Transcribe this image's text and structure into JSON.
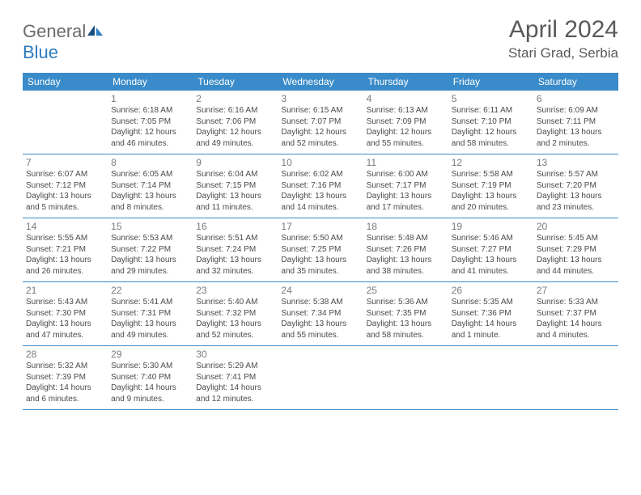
{
  "brand": {
    "part1": "General",
    "part2": "Blue"
  },
  "title": "April 2024",
  "location": "Stari Grad, Serbia",
  "colors": {
    "header_bg": "#3a8bc9",
    "header_text": "#ffffff",
    "logo_gray": "#6b6b6b",
    "logo_blue": "#2d7cc0",
    "text": "#4a4a4a",
    "daynum": "#7a7a7a",
    "rule": "#3a8bc9"
  },
  "day_headers": [
    "Sunday",
    "Monday",
    "Tuesday",
    "Wednesday",
    "Thursday",
    "Friday",
    "Saturday"
  ],
  "weeks": [
    [
      {
        "n": "",
        "lines": []
      },
      {
        "n": "1",
        "lines": [
          "Sunrise: 6:18 AM",
          "Sunset: 7:05 PM",
          "Daylight: 12 hours",
          "and 46 minutes."
        ]
      },
      {
        "n": "2",
        "lines": [
          "Sunrise: 6:16 AM",
          "Sunset: 7:06 PM",
          "Daylight: 12 hours",
          "and 49 minutes."
        ]
      },
      {
        "n": "3",
        "lines": [
          "Sunrise: 6:15 AM",
          "Sunset: 7:07 PM",
          "Daylight: 12 hours",
          "and 52 minutes."
        ]
      },
      {
        "n": "4",
        "lines": [
          "Sunrise: 6:13 AM",
          "Sunset: 7:09 PM",
          "Daylight: 12 hours",
          "and 55 minutes."
        ]
      },
      {
        "n": "5",
        "lines": [
          "Sunrise: 6:11 AM",
          "Sunset: 7:10 PM",
          "Daylight: 12 hours",
          "and 58 minutes."
        ]
      },
      {
        "n": "6",
        "lines": [
          "Sunrise: 6:09 AM",
          "Sunset: 7:11 PM",
          "Daylight: 13 hours",
          "and 2 minutes."
        ]
      }
    ],
    [
      {
        "n": "7",
        "lines": [
          "Sunrise: 6:07 AM",
          "Sunset: 7:12 PM",
          "Daylight: 13 hours",
          "and 5 minutes."
        ]
      },
      {
        "n": "8",
        "lines": [
          "Sunrise: 6:05 AM",
          "Sunset: 7:14 PM",
          "Daylight: 13 hours",
          "and 8 minutes."
        ]
      },
      {
        "n": "9",
        "lines": [
          "Sunrise: 6:04 AM",
          "Sunset: 7:15 PM",
          "Daylight: 13 hours",
          "and 11 minutes."
        ]
      },
      {
        "n": "10",
        "lines": [
          "Sunrise: 6:02 AM",
          "Sunset: 7:16 PM",
          "Daylight: 13 hours",
          "and 14 minutes."
        ]
      },
      {
        "n": "11",
        "lines": [
          "Sunrise: 6:00 AM",
          "Sunset: 7:17 PM",
          "Daylight: 13 hours",
          "and 17 minutes."
        ]
      },
      {
        "n": "12",
        "lines": [
          "Sunrise: 5:58 AM",
          "Sunset: 7:19 PM",
          "Daylight: 13 hours",
          "and 20 minutes."
        ]
      },
      {
        "n": "13",
        "lines": [
          "Sunrise: 5:57 AM",
          "Sunset: 7:20 PM",
          "Daylight: 13 hours",
          "and 23 minutes."
        ]
      }
    ],
    [
      {
        "n": "14",
        "lines": [
          "Sunrise: 5:55 AM",
          "Sunset: 7:21 PM",
          "Daylight: 13 hours",
          "and 26 minutes."
        ]
      },
      {
        "n": "15",
        "lines": [
          "Sunrise: 5:53 AM",
          "Sunset: 7:22 PM",
          "Daylight: 13 hours",
          "and 29 minutes."
        ]
      },
      {
        "n": "16",
        "lines": [
          "Sunrise: 5:51 AM",
          "Sunset: 7:24 PM",
          "Daylight: 13 hours",
          "and 32 minutes."
        ]
      },
      {
        "n": "17",
        "lines": [
          "Sunrise: 5:50 AM",
          "Sunset: 7:25 PM",
          "Daylight: 13 hours",
          "and 35 minutes."
        ]
      },
      {
        "n": "18",
        "lines": [
          "Sunrise: 5:48 AM",
          "Sunset: 7:26 PM",
          "Daylight: 13 hours",
          "and 38 minutes."
        ]
      },
      {
        "n": "19",
        "lines": [
          "Sunrise: 5:46 AM",
          "Sunset: 7:27 PM",
          "Daylight: 13 hours",
          "and 41 minutes."
        ]
      },
      {
        "n": "20",
        "lines": [
          "Sunrise: 5:45 AM",
          "Sunset: 7:29 PM",
          "Daylight: 13 hours",
          "and 44 minutes."
        ]
      }
    ],
    [
      {
        "n": "21",
        "lines": [
          "Sunrise: 5:43 AM",
          "Sunset: 7:30 PM",
          "Daylight: 13 hours",
          "and 47 minutes."
        ]
      },
      {
        "n": "22",
        "lines": [
          "Sunrise: 5:41 AM",
          "Sunset: 7:31 PM",
          "Daylight: 13 hours",
          "and 49 minutes."
        ]
      },
      {
        "n": "23",
        "lines": [
          "Sunrise: 5:40 AM",
          "Sunset: 7:32 PM",
          "Daylight: 13 hours",
          "and 52 minutes."
        ]
      },
      {
        "n": "24",
        "lines": [
          "Sunrise: 5:38 AM",
          "Sunset: 7:34 PM",
          "Daylight: 13 hours",
          "and 55 minutes."
        ]
      },
      {
        "n": "25",
        "lines": [
          "Sunrise: 5:36 AM",
          "Sunset: 7:35 PM",
          "Daylight: 13 hours",
          "and 58 minutes."
        ]
      },
      {
        "n": "26",
        "lines": [
          "Sunrise: 5:35 AM",
          "Sunset: 7:36 PM",
          "Daylight: 14 hours",
          "and 1 minute."
        ]
      },
      {
        "n": "27",
        "lines": [
          "Sunrise: 5:33 AM",
          "Sunset: 7:37 PM",
          "Daylight: 14 hours",
          "and 4 minutes."
        ]
      }
    ],
    [
      {
        "n": "28",
        "lines": [
          "Sunrise: 5:32 AM",
          "Sunset: 7:39 PM",
          "Daylight: 14 hours",
          "and 6 minutes."
        ]
      },
      {
        "n": "29",
        "lines": [
          "Sunrise: 5:30 AM",
          "Sunset: 7:40 PM",
          "Daylight: 14 hours",
          "and 9 minutes."
        ]
      },
      {
        "n": "30",
        "lines": [
          "Sunrise: 5:29 AM",
          "Sunset: 7:41 PM",
          "Daylight: 14 hours",
          "and 12 minutes."
        ]
      },
      {
        "n": "",
        "lines": []
      },
      {
        "n": "",
        "lines": []
      },
      {
        "n": "",
        "lines": []
      },
      {
        "n": "",
        "lines": []
      }
    ]
  ]
}
